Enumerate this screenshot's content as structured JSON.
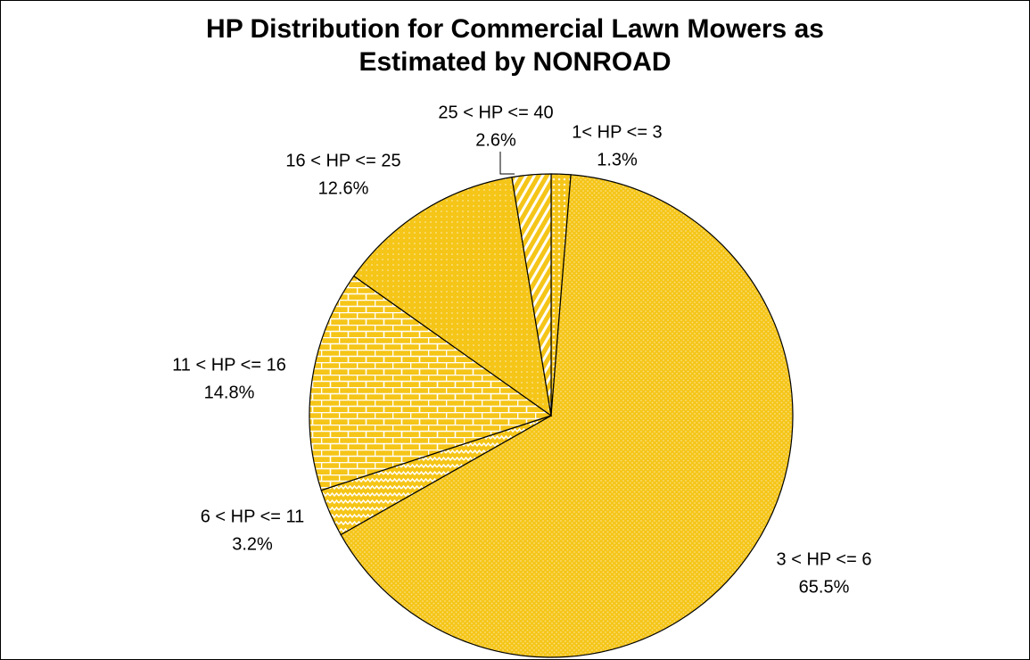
{
  "chart_data": {
    "type": "pie",
    "title": "HP Distribution for Commercial Lawn Mowers as Estimated by NONROAD",
    "categories": [
      "1< HP <= 3",
      "3 < HP <= 6",
      "6 < HP <= 11",
      "11 < HP <= 16",
      "16 < HP <= 25",
      "25 < HP <= 40"
    ],
    "values": [
      1.3,
      65.5,
      3.2,
      14.8,
      12.6,
      2.6
    ],
    "value_labels": [
      "1.3%",
      "65.5%",
      "3.2%",
      "14.8%",
      "12.6%",
      "2.6%"
    ],
    "colors": [
      "#f5c518",
      "#f5c518",
      "#f5c518",
      "#f5c518",
      "#f5c518",
      "#f5c518"
    ]
  }
}
